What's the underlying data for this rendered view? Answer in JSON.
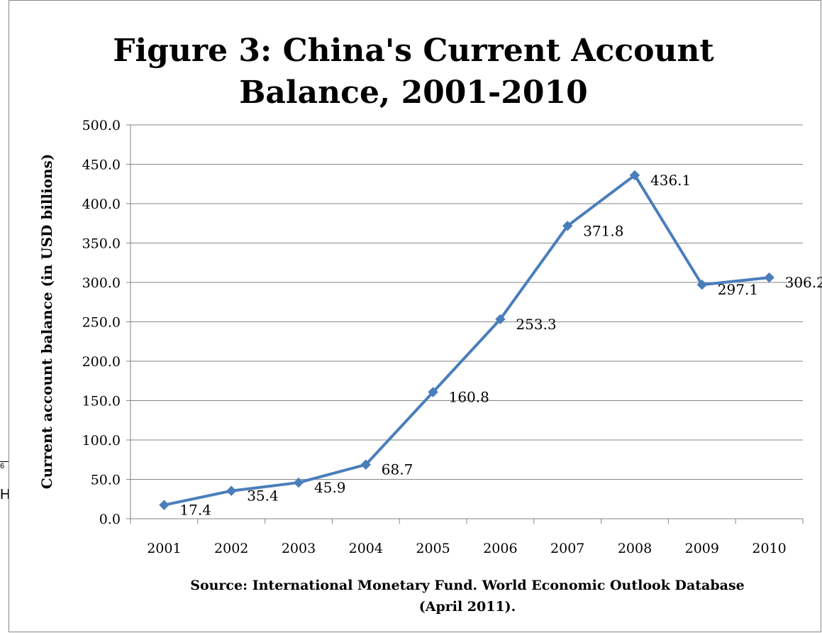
{
  "edge_artifacts": {
    "superscript": "6",
    "char": "H"
  },
  "chart_data": {
    "type": "line",
    "title": "Figure 3:  China's Current Account Balance, 2001-2010",
    "title_lines": [
      "Figure 3:  China's Current Account",
      "Balance, 2001-2010"
    ],
    "xlabel": "",
    "ylabel": "Current account balance (in USD billions)",
    "categories": [
      "2001",
      "2002",
      "2003",
      "2004",
      "2005",
      "2006",
      "2007",
      "2008",
      "2009",
      "2010"
    ],
    "series": [
      {
        "values": [
          17.4,
          35.4,
          45.9,
          68.7,
          160.8,
          253.3,
          371.8,
          436.1,
          297.1,
          306.2
        ],
        "color": "#4a7ebb",
        "marker": "diamond"
      }
    ],
    "data_labels": [
      "17.4",
      "35.4",
      "45.9",
      "68.7",
      "160.8",
      "253.3",
      "371.8",
      "436.1",
      "297.1",
      "306.2"
    ],
    "ylim": [
      0,
      500
    ],
    "yticks": [
      "0.0",
      "50.0",
      "100.0",
      "150.0",
      "200.0",
      "250.0",
      "300.0",
      "350.0",
      "400.0",
      "450.0",
      "500.0"
    ],
    "grid": true,
    "legend": "none",
    "source_lines": [
      "Source:  International Monetary Fund. World Economic Outlook Database",
      "(April 2011)."
    ]
  }
}
